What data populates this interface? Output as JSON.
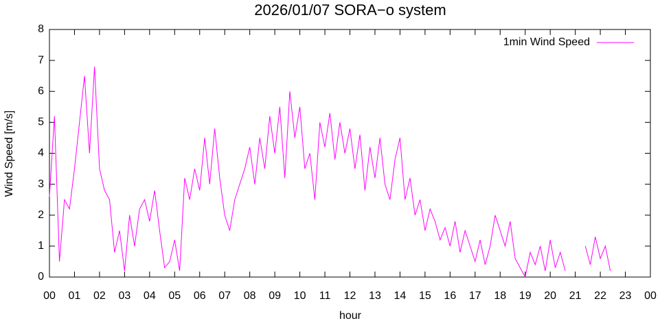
{
  "chart_data": {
    "type": "line",
    "title": "2026/01/07 SORA−o system",
    "x_label": "hour",
    "y_label": "Wind Speed [m/s]",
    "xlim": [
      0,
      24
    ],
    "ylim": [
      0,
      8
    ],
    "xticks": [
      {
        "value": 0,
        "label": "00"
      },
      {
        "value": 1,
        "label": "01"
      },
      {
        "value": 2,
        "label": "02"
      },
      {
        "value": 3,
        "label": "03"
      },
      {
        "value": 4,
        "label": "04"
      },
      {
        "value": 5,
        "label": "05"
      },
      {
        "value": 6,
        "label": "06"
      },
      {
        "value": 7,
        "label": "07"
      },
      {
        "value": 8,
        "label": "08"
      },
      {
        "value": 9,
        "label": "09"
      },
      {
        "value": 10,
        "label": "10"
      },
      {
        "value": 11,
        "label": "11"
      },
      {
        "value": 12,
        "label": "12"
      },
      {
        "value": 13,
        "label": "13"
      },
      {
        "value": 14,
        "label": "14"
      },
      {
        "value": 15,
        "label": "15"
      },
      {
        "value": 16,
        "label": "16"
      },
      {
        "value": 17,
        "label": "17"
      },
      {
        "value": 18,
        "label": "18"
      },
      {
        "value": 19,
        "label": "19"
      },
      {
        "value": 20,
        "label": "20"
      },
      {
        "value": 21,
        "label": "21"
      },
      {
        "value": 22,
        "label": "22"
      },
      {
        "value": 23,
        "label": "23"
      },
      {
        "value": 24,
        "label": "00"
      }
    ],
    "yticks": [
      0,
      1,
      2,
      3,
      4,
      5,
      6,
      7,
      8
    ],
    "legend": "top-right",
    "x": [
      0,
      0.2,
      0.4,
      0.6,
      0.8,
      1,
      1.2,
      1.4,
      1.6,
      1.8,
      2,
      2.2,
      2.4,
      2.6,
      2.8,
      3,
      3.2,
      3.4,
      3.6,
      3.8,
      4,
      4.2,
      4.4,
      4.6,
      4.8,
      5,
      5.2,
      5.4,
      5.6,
      5.8,
      6,
      6.2,
      6.4,
      6.6,
      6.8,
      7,
      7.2,
      7.4,
      7.6,
      7.8,
      8,
      8.2,
      8.4,
      8.6,
      8.8,
      9,
      9.2,
      9.4,
      9.6,
      9.8,
      10,
      10.2,
      10.4,
      10.6,
      10.8,
      11,
      11.2,
      11.4,
      11.6,
      11.8,
      12,
      12.2,
      12.4,
      12.6,
      12.8,
      13,
      13.2,
      13.4,
      13.6,
      13.8,
      14,
      14.2,
      14.4,
      14.6,
      14.8,
      15,
      15.2,
      15.4,
      15.6,
      15.8,
      16,
      16.2,
      16.4,
      16.6,
      16.8,
      17,
      17.2,
      17.4,
      17.6,
      17.8,
      18,
      18.2,
      18.4,
      18.6,
      18.8,
      19,
      19.2,
      19.4,
      19.6,
      19.8,
      20,
      20.2,
      20.4,
      20.6,
      20.8,
      21,
      21.2,
      21.4,
      21.6,
      21.8,
      22,
      22.2,
      22.4
    ],
    "series": [
      {
        "name": "1min Wind Speed",
        "color": "#ff00ff",
        "values": [
          2.6,
          5.2,
          0.5,
          2.5,
          2.2,
          3.5,
          5.0,
          6.5,
          4.0,
          6.8,
          3.5,
          2.8,
          2.5,
          0.8,
          1.5,
          0.2,
          2.0,
          1.0,
          2.2,
          2.5,
          1.8,
          2.8,
          1.5,
          0.3,
          0.5,
          1.2,
          0.2,
          3.2,
          2.5,
          3.5,
          2.8,
          4.5,
          3.0,
          4.8,
          3.2,
          2.0,
          1.5,
          2.5,
          3.0,
          3.5,
          4.2,
          3.0,
          4.5,
          3.5,
          5.2,
          4.0,
          5.5,
          3.2,
          6.0,
          4.5,
          5.5,
          3.5,
          4.0,
          2.5,
          5.0,
          4.2,
          5.3,
          3.8,
          5.0,
          4.0,
          4.8,
          3.5,
          4.6,
          2.8,
          4.2,
          3.2,
          4.5,
          3.0,
          2.5,
          3.8,
          4.5,
          2.5,
          3.2,
          2.0,
          2.5,
          1.5,
          2.2,
          1.8,
          1.2,
          1.6,
          1.0,
          1.8,
          0.8,
          1.5,
          1.0,
          0.5,
          1.2,
          0.4,
          1.0,
          2.0,
          1.5,
          1.0,
          1.8,
          0.6,
          0.3,
          0.0,
          0.8,
          0.4,
          1.0,
          0.2,
          1.2,
          0.3,
          0.8,
          0.2,
          null,
          null,
          null,
          1.0,
          0.4,
          1.3,
          0.6,
          1.0,
          0.2
        ]
      }
    ]
  }
}
